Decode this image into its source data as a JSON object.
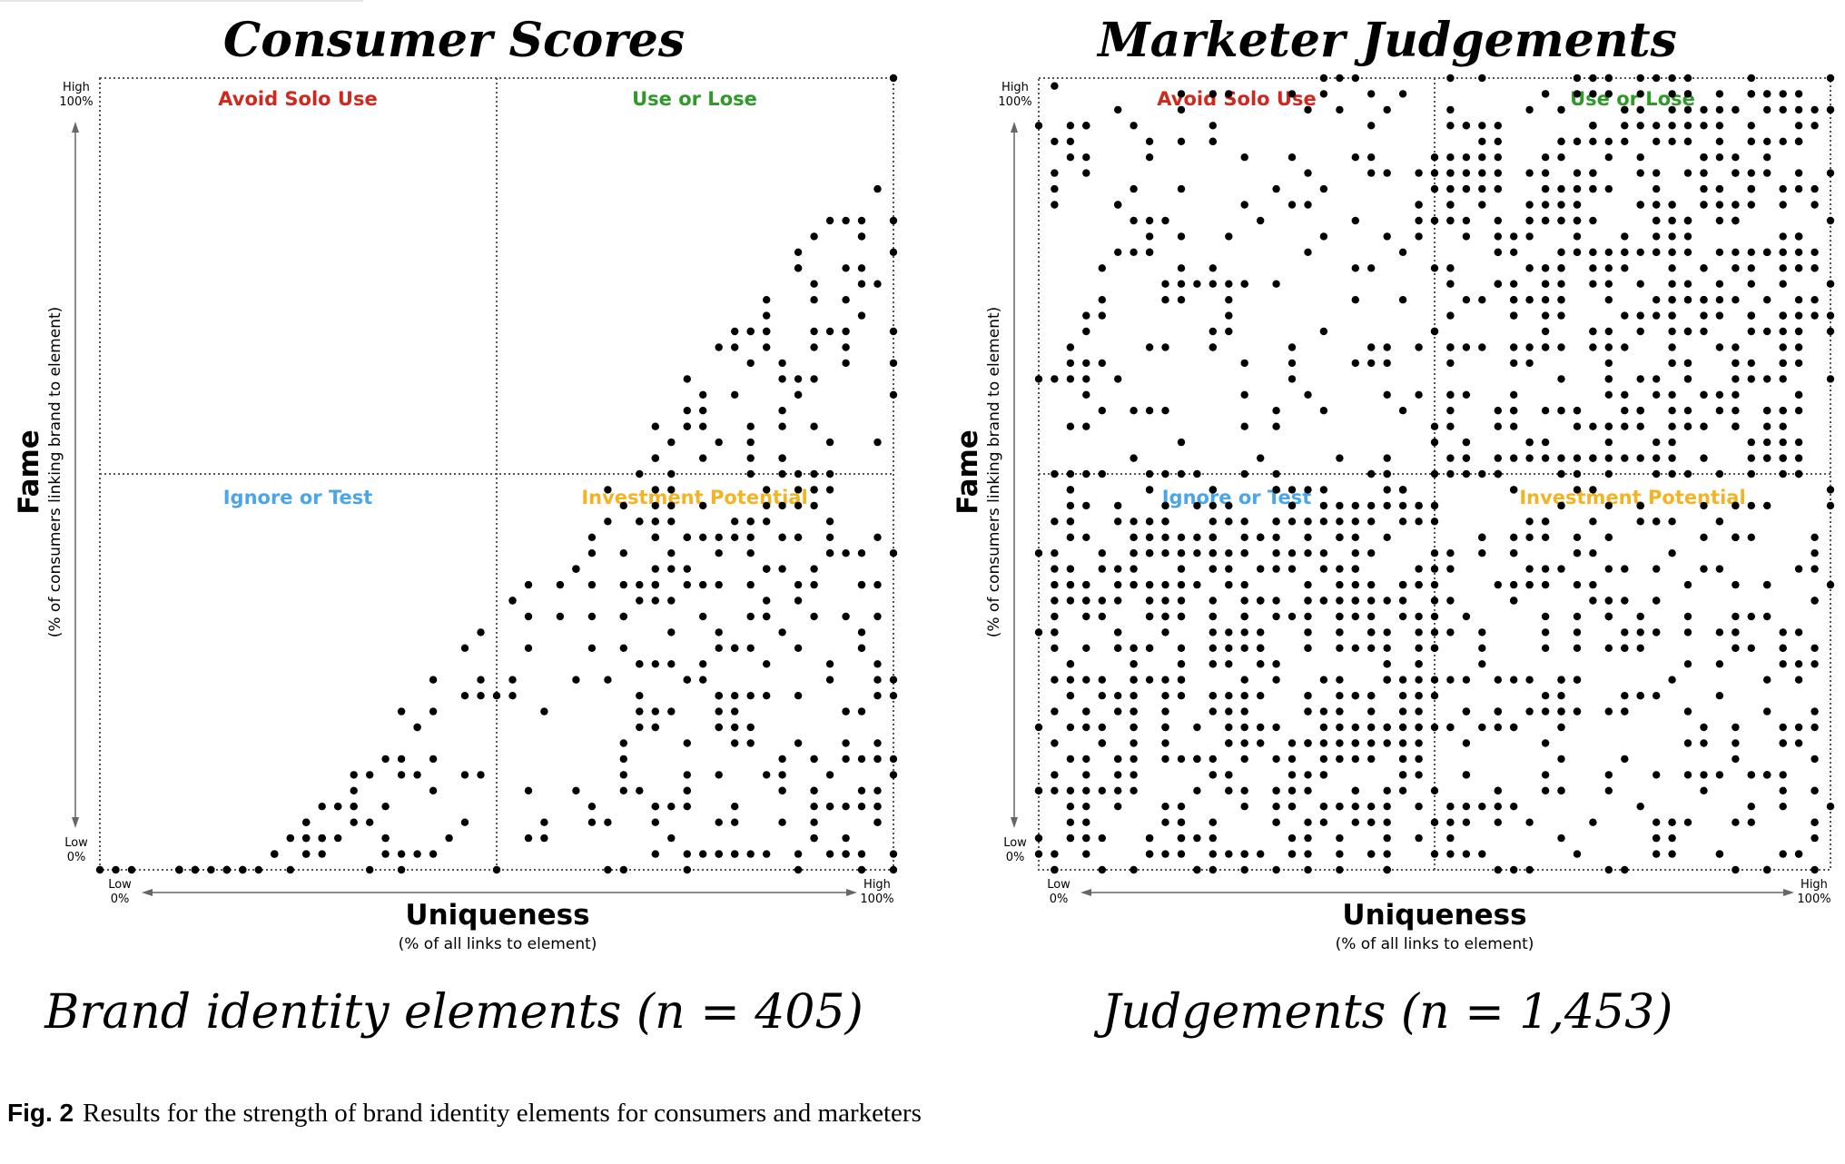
{
  "figure": {
    "label": "Fig. 2",
    "caption": "Results for the strength of brand identity elements for consumers and marketers"
  },
  "chart_data": [
    {
      "type": "scatter",
      "title": "Consumer Scores",
      "subtitle": "Brand identity elements (n = 405)",
      "xlabel": "Uniqueness",
      "xlabel_sub": "(% of all links to element)",
      "ylabel": "Fame",
      "ylabel_sub": "(% of consumers linking brand to element)",
      "xlim": [
        0,
        100
      ],
      "ylim": [
        0,
        100
      ],
      "x_ticks": {
        "low": "Low",
        "low_pct": "0%",
        "high": "High",
        "high_pct": "100%"
      },
      "y_ticks": {
        "low": "Low",
        "low_pct": "0%",
        "high": "High",
        "high_pct": "100%"
      },
      "quadrants": [
        {
          "label": "Avoid Solo Use",
          "position": "top-left",
          "color": "#d0281e"
        },
        {
          "label": "Use or Lose",
          "position": "top-right",
          "color": "#2f9a2a"
        },
        {
          "label": "Ignore or Test",
          "position": "bottom-left",
          "color": "#4aa6e6"
        },
        {
          "label": "Investment Potential",
          "position": "bottom-right",
          "color": "#f2b424"
        }
      ],
      "divider_x": 50,
      "divider_y": 50,
      "n_points": 405,
      "generator": {
        "seed": 12345,
        "bands": [
          [
            0,
            50,
            0,
            30,
            80
          ],
          [
            50,
            100,
            0,
            50,
            160
          ],
          [
            50,
            100,
            50,
            100,
            110
          ],
          [
            55,
            98,
            35,
            80,
            55
          ]
        ],
        "x_power": 0.7,
        "triangle": true
      },
      "points": [
        [
          100,
          0
        ],
        [
          100,
          100
        ]
      ]
    },
    {
      "type": "scatter",
      "title": "Marketer Judgements",
      "subtitle": "Judgements (n = 1,453)",
      "xlabel": "Uniqueness",
      "xlabel_sub": "(% of all links to element)",
      "ylabel": "Fame",
      "ylabel_sub": "(% of consumers linking brand to element)",
      "xlim": [
        0,
        100
      ],
      "ylim": [
        0,
        100
      ],
      "x_ticks": {
        "low": "Low",
        "low_pct": "0%",
        "high": "High",
        "high_pct": "100%"
      },
      "y_ticks": {
        "low": "Low",
        "low_pct": "0%",
        "high": "High",
        "high_pct": "100%"
      },
      "quadrants": [
        {
          "label": "Avoid Solo Use",
          "position": "top-left",
          "color": "#d0281e"
        },
        {
          "label": "Use or Lose",
          "position": "top-right",
          "color": "#2f9a2a"
        },
        {
          "label": "Ignore or Test",
          "position": "bottom-left",
          "color": "#4aa6e6"
        },
        {
          "label": "Investment Potential",
          "position": "bottom-right",
          "color": "#f2b424"
        }
      ],
      "divider_x": 50,
      "divider_y": 50,
      "n_points": 1453,
      "generator": {
        "seed": 98765,
        "bands": [
          [
            0,
            50,
            0,
            50,
            420
          ],
          [
            0,
            50,
            50,
            100,
            150
          ],
          [
            50,
            100,
            0,
            50,
            280
          ],
          [
            50,
            100,
            50,
            100,
            420
          ],
          [
            0,
            50,
            0,
            45,
            100
          ],
          [
            60,
            100,
            60,
            100,
            83
          ]
        ],
        "x_power": 1.0,
        "triangle": false
      },
      "points": [
        [
          2,
          99
        ],
        [
          100,
          100
        ],
        [
          100,
          62
        ],
        [
          98,
          0
        ]
      ]
    }
  ]
}
